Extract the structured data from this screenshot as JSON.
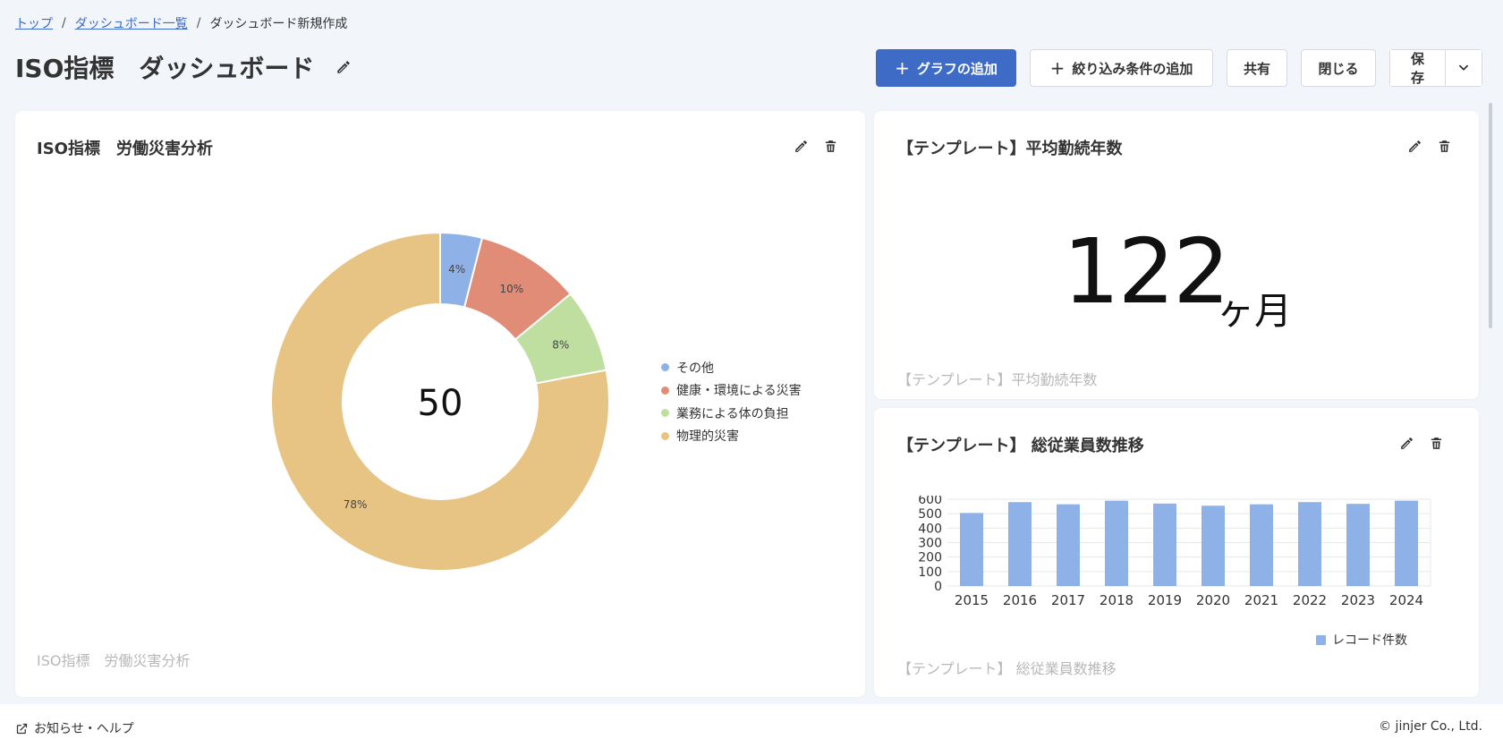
{
  "breadcrumb": {
    "items": [
      "トップ",
      "ダッシュボード一覧"
    ],
    "current": "ダッシュボード新規作成",
    "separator": "/"
  },
  "page": {
    "title": "ISO指標　ダッシュボード"
  },
  "toolbar": {
    "add_chart_label": "グラフの追加",
    "add_filter_label": "絞り込み条件の追加",
    "share_label": "共有",
    "close_label": "閉じる",
    "save_label": "保存"
  },
  "cards": {
    "accident": {
      "title": "ISO指標　労働災害分析",
      "footer": "ISO指標　労働災害分析",
      "center_value": "50"
    },
    "tenure": {
      "title": "【テンプレート】平均勤続年数",
      "footer": "【テンプレート】平均勤続年数",
      "value": "122",
      "unit": "ヶ月"
    },
    "headcount": {
      "title": "【テンプレート】 総従業員数推移",
      "footer": "【テンプレート】 総従業員数推移",
      "legend_label": "レコード件数"
    }
  },
  "chart_data": [
    {
      "type": "pie",
      "donut": true,
      "center_label": "50",
      "categories": [
        "その他",
        "健康・環境による災害",
        "業務による体の負担",
        "物理的災害"
      ],
      "values": [
        4,
        10,
        8,
        78
      ],
      "value_labels": [
        "4%",
        "10%",
        "8%",
        "78%"
      ],
      "colors": [
        "#8eb1e8",
        "#e08c77",
        "#bedf9f",
        "#e8c484"
      ],
      "legend": "right"
    },
    {
      "type": "bar",
      "categories": [
        "2015",
        "2016",
        "2017",
        "2018",
        "2019",
        "2020",
        "2021",
        "2022",
        "2023",
        "2024"
      ],
      "series": [
        {
          "name": "レコード件数",
          "values": [
            505,
            580,
            565,
            590,
            570,
            555,
            565,
            580,
            568,
            590
          ]
        }
      ],
      "yticks": [
        "0",
        "100",
        "200",
        "300",
        "400",
        "500",
        "600"
      ],
      "ylim": [
        0,
        600
      ],
      "grid": true,
      "legend": "bottom-right",
      "colors": [
        "#8eb1e8"
      ]
    }
  ],
  "footer": {
    "help_label": "お知らせ・ヘルプ",
    "copyright": "© jinjer Co., Ltd."
  },
  "icons": {
    "edit": "pencil-icon",
    "delete": "trash-icon",
    "external": "external-link-icon",
    "chevron": "chevron-down-icon"
  }
}
